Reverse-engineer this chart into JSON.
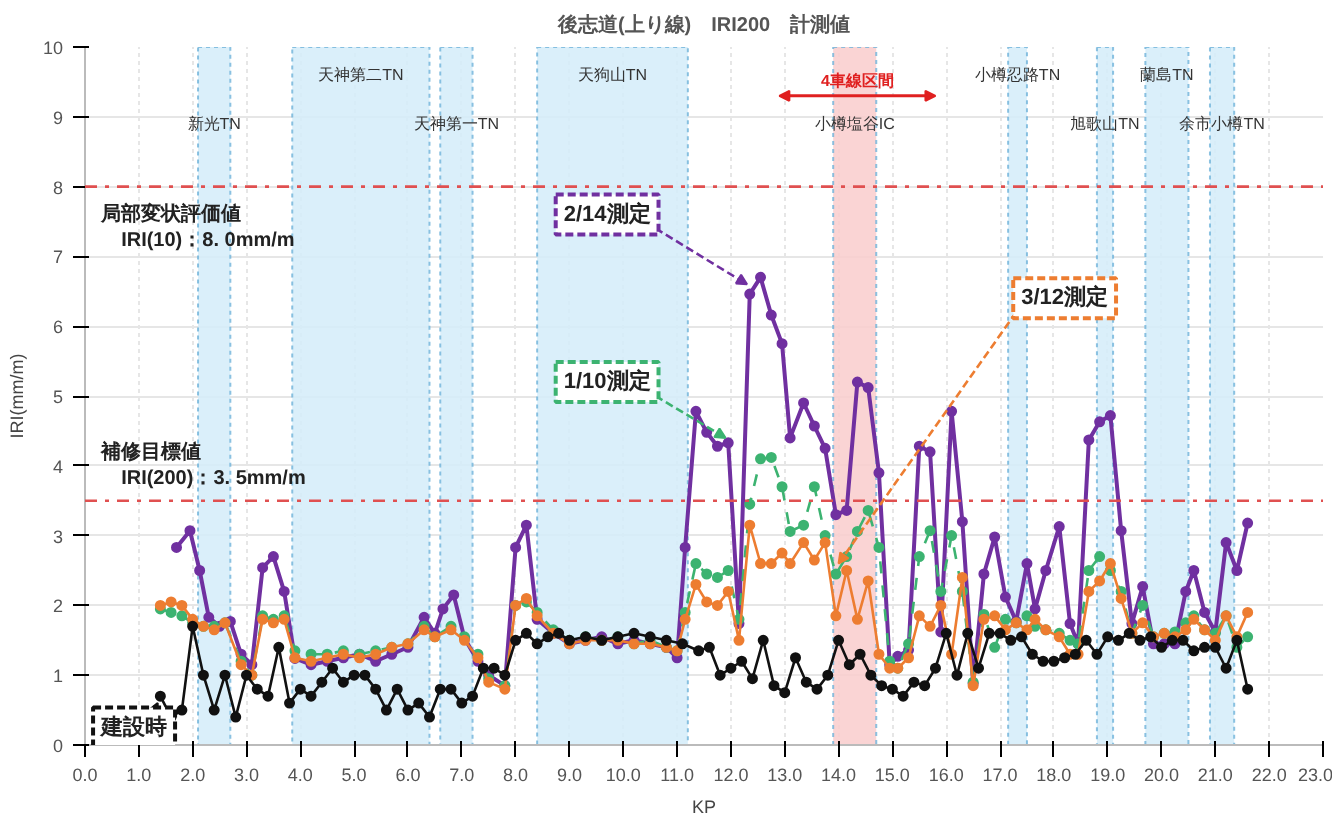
{
  "chart_data": {
    "type": "line",
    "title": "後志道(上り線)　IRI200　計測値",
    "xlabel": "KP",
    "ylabel": "IRI(mm/m)",
    "xlim": [
      0,
      23
    ],
    "ylim": [
      0,
      10
    ],
    "xticks": [
      {
        "value": 0,
        "label": "0.0"
      },
      {
        "value": 1,
        "label": "1.0"
      },
      {
        "value": 2,
        "label": "2.0"
      },
      {
        "value": 3,
        "label": "3.0"
      },
      {
        "value": 4,
        "label": "4.0"
      },
      {
        "value": 5,
        "label": "5.0"
      },
      {
        "value": 6,
        "label": "6.0"
      },
      {
        "value": 7,
        "label": "7.0"
      },
      {
        "value": 8,
        "label": "8.0"
      },
      {
        "value": 9,
        "label": "9.0"
      },
      {
        "value": 10,
        "label": "10.0"
      },
      {
        "value": 11,
        "label": "11.0"
      },
      {
        "value": 12,
        "label": "12.0"
      },
      {
        "value": 13,
        "label": "13.0"
      },
      {
        "value": 14,
        "label": "14.0"
      },
      {
        "value": 15,
        "label": "15.0"
      },
      {
        "value": 16,
        "label": "16.0"
      },
      {
        "value": 17,
        "label": "17.0"
      },
      {
        "value": 18,
        "label": "18.0"
      },
      {
        "value": 19,
        "label": "19.0"
      },
      {
        "value": 20,
        "label": "20.0"
      },
      {
        "value": 21,
        "label": "21.0"
      },
      {
        "value": 22,
        "label": "22.0"
      },
      {
        "value": 23,
        "label": "23.0"
      }
    ],
    "yticks": [
      0,
      1,
      2,
      3,
      4,
      5,
      6,
      7,
      8,
      9,
      10
    ],
    "grid": true,
    "marker": "circle",
    "series": [
      {
        "name": "2/14測定",
        "color": "#7030a0",
        "line_style": "solid",
        "x": [
          1.7,
          1.95,
          2.13,
          2.3,
          2.5,
          2.7,
          2.9,
          3.1,
          3.3,
          3.5,
          3.7,
          3.9,
          4.2,
          4.5,
          4.8,
          5.1,
          5.4,
          5.7,
          6.0,
          6.3,
          6.5,
          6.65,
          6.85,
          7.05,
          7.3,
          7.5,
          7.8,
          8.0,
          8.2,
          8.4,
          8.7,
          9.0,
          9.3,
          9.6,
          9.9,
          10.2,
          10.5,
          10.8,
          11.0,
          11.15,
          11.35,
          11.55,
          11.75,
          11.95,
          12.15,
          12.35,
          12.55,
          12.75,
          12.95,
          13.1,
          13.35,
          13.55,
          13.75,
          13.95,
          14.15,
          14.35,
          14.55,
          14.75,
          14.95,
          15.1,
          15.3,
          15.5,
          15.7,
          15.9,
          16.1,
          16.3,
          16.5,
          16.7,
          16.9,
          17.1,
          17.3,
          17.5,
          17.65,
          17.85,
          18.1,
          18.3,
          18.45,
          18.65,
          18.85,
          19.05,
          19.25,
          19.45,
          19.65,
          19.85,
          20.05,
          20.25,
          20.45,
          20.6,
          20.8,
          21.0,
          21.2,
          21.4,
          21.6
        ],
        "values": [
          2.83,
          3.07,
          2.5,
          1.83,
          1.7,
          1.77,
          1.3,
          1.15,
          2.54,
          2.7,
          2.2,
          1.24,
          1.15,
          1.2,
          1.25,
          1.3,
          1.2,
          1.3,
          1.4,
          1.83,
          1.6,
          1.95,
          2.15,
          1.53,
          1.2,
          1.0,
          0.85,
          2.83,
          3.15,
          1.8,
          1.6,
          1.45,
          1.5,
          1.55,
          1.45,
          1.5,
          1.45,
          1.4,
          1.25,
          2.83,
          4.78,
          4.48,
          4.28,
          4.33,
          1.74,
          6.46,
          6.7,
          6.16,
          5.75,
          4.4,
          4.9,
          4.57,
          4.25,
          3.3,
          3.36,
          5.2,
          5.12,
          3.9,
          1.15,
          1.27,
          1.36,
          4.28,
          4.2,
          1.62,
          4.78,
          3.2,
          0.88,
          2.45,
          2.98,
          2.12,
          1.77,
          2.6,
          1.95,
          2.5,
          3.13,
          1.74,
          1.45,
          4.37,
          4.63,
          4.72,
          3.07,
          1.74,
          2.27,
          1.45,
          1.45,
          1.45,
          2.2,
          2.5,
          1.9,
          1.62,
          2.9,
          2.5,
          3.18
        ]
      },
      {
        "name": "1/10測定",
        "color": "#3cb371",
        "line_style": "dashed",
        "x": [
          1.4,
          1.6,
          1.8,
          2.0,
          2.2,
          2.4,
          2.6,
          2.9,
          3.1,
          3.3,
          3.5,
          3.7,
          3.9,
          4.2,
          4.5,
          4.8,
          5.1,
          5.4,
          5.7,
          6.0,
          6.3,
          6.5,
          6.8,
          7.05,
          7.3,
          7.5,
          7.8,
          8.0,
          8.2,
          8.4,
          8.7,
          9.0,
          9.3,
          9.6,
          9.9,
          10.2,
          10.5,
          10.8,
          11.0,
          11.15,
          11.35,
          11.55,
          11.75,
          11.95,
          12.15,
          12.35,
          12.55,
          12.75,
          12.95,
          13.1,
          13.35,
          13.55,
          13.75,
          13.95,
          14.15,
          14.35,
          14.55,
          14.75,
          14.95,
          15.1,
          15.3,
          15.5,
          15.7,
          15.9,
          16.1,
          16.3,
          16.5,
          16.7,
          16.9,
          17.1,
          17.3,
          17.5,
          17.65,
          17.85,
          18.1,
          18.3,
          18.45,
          18.65,
          18.85,
          19.05,
          19.25,
          19.45,
          19.65,
          19.85,
          20.05,
          20.25,
          20.45,
          20.6,
          20.8,
          21.0,
          21.2,
          21.4,
          21.6
        ],
        "values": [
          1.95,
          1.9,
          1.85,
          1.75,
          1.7,
          1.7,
          1.75,
          1.2,
          1.0,
          1.85,
          1.8,
          1.85,
          1.35,
          1.3,
          1.3,
          1.35,
          1.3,
          1.35,
          1.4,
          1.45,
          1.7,
          1.55,
          1.7,
          1.55,
          1.3,
          0.95,
          0.85,
          2.0,
          2.05,
          1.9,
          1.65,
          1.5,
          1.55,
          1.5,
          1.55,
          1.45,
          1.5,
          1.4,
          1.35,
          1.9,
          2.6,
          2.45,
          2.4,
          2.5,
          1.8,
          3.45,
          4.1,
          4.12,
          3.7,
          3.06,
          3.15,
          3.7,
          3.0,
          2.45,
          2.7,
          3.06,
          3.36,
          2.83,
          1.2,
          1.1,
          1.45,
          2.7,
          3.07,
          2.2,
          3.0,
          2.2,
          0.9,
          1.87,
          1.4,
          1.8,
          1.75,
          1.85,
          1.7,
          1.65,
          1.6,
          1.5,
          1.45,
          2.5,
          2.7,
          2.5,
          2.2,
          1.6,
          2.0,
          1.55,
          1.6,
          1.62,
          1.75,
          1.85,
          1.65,
          1.6,
          1.85,
          1.4,
          1.55
        ]
      },
      {
        "name": "3/12測定",
        "color": "#ed7d31",
        "line_style": "solid",
        "x": [
          1.4,
          1.6,
          1.8,
          2.0,
          2.2,
          2.4,
          2.6,
          2.9,
          3.1,
          3.3,
          3.5,
          3.7,
          3.9,
          4.2,
          4.5,
          4.8,
          5.1,
          5.4,
          5.7,
          6.0,
          6.3,
          6.5,
          6.8,
          7.05,
          7.3,
          7.5,
          7.8,
          8.0,
          8.2,
          8.4,
          8.7,
          9.0,
          9.3,
          9.6,
          9.9,
          10.2,
          10.5,
          10.8,
          11.0,
          11.15,
          11.35,
          11.55,
          11.75,
          11.95,
          12.15,
          12.35,
          12.55,
          12.75,
          12.95,
          13.1,
          13.35,
          13.55,
          13.75,
          13.95,
          14.15,
          14.35,
          14.55,
          14.75,
          14.95,
          15.1,
          15.3,
          15.5,
          15.7,
          15.9,
          16.1,
          16.3,
          16.5,
          16.7,
          16.9,
          17.1,
          17.3,
          17.5,
          17.65,
          17.85,
          18.1,
          18.3,
          18.45,
          18.65,
          18.85,
          19.05,
          19.25,
          19.45,
          19.65,
          19.85,
          20.05,
          20.25,
          20.45,
          20.6,
          20.8,
          21.0,
          21.2,
          21.4,
          21.6
        ],
        "values": [
          2.0,
          2.05,
          2.0,
          1.8,
          1.7,
          1.65,
          1.75,
          1.15,
          1.0,
          1.8,
          1.75,
          1.8,
          1.25,
          1.2,
          1.25,
          1.3,
          1.25,
          1.3,
          1.4,
          1.45,
          1.65,
          1.55,
          1.65,
          1.5,
          1.25,
          0.9,
          0.8,
          2.0,
          2.1,
          1.85,
          1.6,
          1.45,
          1.5,
          1.5,
          1.5,
          1.45,
          1.45,
          1.4,
          1.35,
          1.8,
          2.3,
          2.05,
          2.0,
          2.2,
          1.5,
          3.15,
          2.6,
          2.6,
          2.75,
          2.6,
          2.9,
          2.65,
          2.9,
          1.85,
          2.5,
          1.8,
          2.35,
          1.3,
          1.1,
          1.1,
          1.25,
          1.85,
          1.7,
          2.0,
          1.3,
          2.4,
          0.85,
          1.8,
          1.85,
          1.65,
          1.75,
          1.65,
          1.8,
          1.65,
          1.55,
          1.3,
          1.3,
          2.2,
          2.35,
          2.6,
          2.1,
          1.6,
          1.75,
          1.55,
          1.6,
          1.55,
          1.65,
          1.8,
          1.65,
          1.5,
          1.85,
          1.55,
          1.9
        ]
      },
      {
        "name": "建設時",
        "color": "#111111",
        "line_style": "solid",
        "x": [
          1.4,
          1.6,
          1.8,
          2.0,
          2.2,
          2.4,
          2.6,
          2.8,
          3.0,
          3.2,
          3.4,
          3.6,
          3.8,
          4.0,
          4.2,
          4.4,
          4.6,
          4.8,
          5.0,
          5.2,
          5.4,
          5.6,
          5.8,
          6.0,
          6.2,
          6.4,
          6.6,
          6.8,
          7.0,
          7.2,
          7.4,
          7.6,
          7.8,
          8.0,
          8.2,
          8.4,
          8.6,
          8.8,
          9.0,
          9.3,
          9.6,
          9.9,
          10.2,
          10.5,
          10.8,
          11.1,
          11.4,
          11.6,
          11.8,
          12.0,
          12.2,
          12.4,
          12.6,
          12.8,
          13.0,
          13.2,
          13.4,
          13.6,
          13.8,
          14.0,
          14.2,
          14.4,
          14.6,
          14.8,
          15.0,
          15.2,
          15.4,
          15.6,
          15.8,
          16.0,
          16.2,
          16.4,
          16.6,
          16.8,
          17.0,
          17.2,
          17.4,
          17.6,
          17.8,
          18.0,
          18.2,
          18.4,
          18.6,
          18.8,
          19.0,
          19.2,
          19.4,
          19.6,
          19.8,
          20.0,
          20.2,
          20.4,
          20.6,
          20.8,
          21.0,
          21.2,
          21.4,
          21.6
        ],
        "values": [
          0.7,
          0.4,
          0.5,
          1.7,
          1.0,
          0.5,
          1.0,
          0.4,
          1.0,
          0.8,
          0.7,
          1.4,
          0.6,
          0.8,
          0.7,
          0.9,
          1.1,
          0.9,
          1.0,
          1.0,
          0.8,
          0.5,
          0.8,
          0.5,
          0.6,
          0.4,
          0.8,
          0.8,
          0.6,
          0.7,
          1.1,
          1.1,
          1.0,
          1.5,
          1.6,
          1.45,
          1.55,
          1.6,
          1.5,
          1.55,
          1.5,
          1.55,
          1.6,
          1.55,
          1.5,
          1.45,
          1.35,
          1.4,
          1.0,
          1.1,
          1.2,
          0.95,
          1.5,
          0.85,
          0.75,
          1.25,
          0.9,
          0.8,
          1.0,
          1.5,
          1.15,
          1.3,
          1.0,
          0.85,
          0.8,
          0.7,
          0.9,
          0.85,
          1.1,
          1.6,
          1.0,
          1.6,
          1.1,
          1.6,
          1.6,
          1.5,
          1.55,
          1.3,
          1.2,
          1.2,
          1.25,
          1.3,
          1.5,
          1.3,
          1.55,
          1.5,
          1.6,
          1.5,
          1.55,
          1.4,
          1.5,
          1.5,
          1.35,
          1.4,
          1.4,
          1.1,
          1.5,
          0.8
        ]
      }
    ],
    "ref_lines": [
      {
        "axis": "y",
        "value": 8,
        "label": "局部変状評価値\n　IRI(10)：8. 0mm/m",
        "color": "#e05050",
        "line_style": "dashdot"
      },
      {
        "axis": "y",
        "value": 3.5,
        "label": "補修目標値\n　IRI(200)：3. 5mm/m",
        "color": "#e05050",
        "line_style": "dashdot"
      }
    ],
    "bands": [
      {
        "axis": "x",
        "from": 2.1,
        "to": 2.7,
        "label": "新光TN",
        "color": "#d4ecf9"
      },
      {
        "axis": "x",
        "from": 3.85,
        "to": 6.4,
        "label": "天神第二TN",
        "color": "#d4ecf9"
      },
      {
        "axis": "x",
        "from": 6.6,
        "to": 7.2,
        "label": "天神第一TN",
        "color": "#d4ecf9"
      },
      {
        "axis": "x",
        "from": 8.4,
        "to": 11.2,
        "label": "天狗山TN",
        "color": "#d4ecf9"
      },
      {
        "axis": "x",
        "from": 13.9,
        "to": 14.7,
        "label": "小樽塩谷IC",
        "color": "#f9cccc"
      },
      {
        "axis": "x",
        "from": 17.15,
        "to": 17.5,
        "label": "小樽忍路TN",
        "color": "#d4ecf9"
      },
      {
        "axis": "x",
        "from": 18.8,
        "to": 19.1,
        "label": "旭歌山TN",
        "color": "#d4ecf9"
      },
      {
        "axis": "x",
        "from": 19.7,
        "to": 20.5,
        "label": "蘭島TN",
        "color": "#d4ecf9"
      },
      {
        "axis": "x",
        "from": 20.9,
        "to": 21.35,
        "label": "余市小樽TN",
        "color": "#d4ecf9"
      }
    ],
    "annotations": [
      "4車線区間"
    ]
  }
}
